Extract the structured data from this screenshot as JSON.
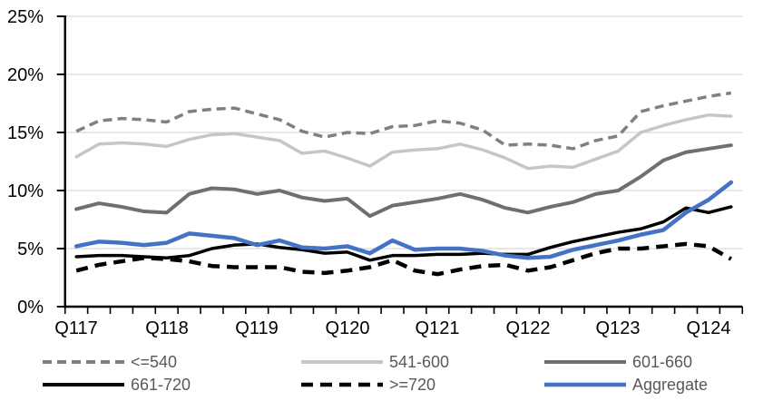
{
  "chart_data": {
    "type": "line",
    "title": "",
    "xlabel": "",
    "ylabel": "",
    "ylim": [
      0,
      25
    ],
    "grid": true,
    "gridline_color": "#d9d9d9",
    "axis_color": "#000000",
    "legend_position": "bottom",
    "ytick_labels": [
      "25%",
      "20%",
      "15%",
      "10%",
      "5%",
      "0%"
    ],
    "xtick_labels": [
      "Q117",
      "Q118",
      "Q119",
      "Q120",
      "Q121",
      "Q122",
      "Q123",
      "Q124"
    ],
    "x_label_every": 4,
    "n_points": 30,
    "x_range_note": "quarterly points from Q1 2017 through Q2 2024",
    "series": [
      {
        "id": "le540",
        "name": "<=540",
        "color": "#808080",
        "dash": "10 6",
        "width": 3.5,
        "values": [
          15.1,
          16.0,
          16.2,
          16.1,
          15.9,
          16.8,
          17.0,
          17.1,
          16.6,
          16.1,
          15.1,
          14.6,
          15.0,
          14.9,
          15.5,
          15.6,
          16.0,
          15.8,
          15.2,
          13.9,
          14.0,
          13.9,
          13.6,
          14.3,
          14.7,
          16.8,
          17.3,
          17.7,
          18.1,
          18.4
        ]
      },
      {
        "id": "s541_600",
        "name": "541-600",
        "color": "#c6c6c6",
        "dash": "",
        "width": 3.5,
        "values": [
          12.9,
          14.0,
          14.1,
          14.0,
          13.8,
          14.4,
          14.8,
          14.9,
          14.6,
          14.3,
          13.2,
          13.4,
          12.8,
          12.1,
          13.3,
          13.5,
          13.6,
          14.0,
          13.5,
          12.8,
          11.9,
          12.1,
          12.0,
          12.7,
          13.4,
          15.0,
          15.6,
          16.1,
          16.5,
          16.4
        ]
      },
      {
        "id": "s601_660",
        "name": "601-660",
        "color": "#6f6f6f",
        "dash": "",
        "width": 4,
        "values": [
          8.4,
          8.9,
          8.6,
          8.2,
          8.1,
          9.7,
          10.2,
          10.1,
          9.7,
          10.0,
          9.4,
          9.1,
          9.3,
          7.8,
          8.7,
          9.0,
          9.3,
          9.7,
          9.2,
          8.5,
          8.1,
          8.6,
          9.0,
          9.7,
          10.0,
          11.2,
          12.6,
          13.3,
          13.6,
          13.9
        ]
      },
      {
        "id": "s661_720",
        "name": "661-720",
        "color": "#000000",
        "dash": "",
        "width": 3.5,
        "values": [
          4.3,
          4.4,
          4.4,
          4.3,
          4.2,
          4.4,
          5.0,
          5.3,
          5.4,
          5.1,
          4.9,
          4.6,
          4.7,
          4.0,
          4.4,
          4.4,
          4.5,
          4.5,
          4.6,
          4.5,
          4.5,
          5.1,
          5.6,
          6.0,
          6.4,
          6.7,
          7.3,
          8.5,
          8.1,
          8.6
        ]
      },
      {
        "id": "ge720",
        "name": ">=720",
        "color": "#000000",
        "dash": "13 8",
        "width": 4.5,
        "values": [
          3.1,
          3.6,
          3.9,
          4.2,
          4.1,
          3.9,
          3.5,
          3.4,
          3.4,
          3.4,
          3.0,
          2.9,
          3.1,
          3.4,
          4.0,
          3.1,
          2.8,
          3.2,
          3.5,
          3.6,
          3.1,
          3.4,
          4.0,
          4.6,
          5.0,
          5.0,
          5.2,
          5.4,
          5.2,
          4.1
        ]
      },
      {
        "id": "aggregate",
        "name": "Aggregate",
        "color": "#4472c4",
        "dash": "",
        "width": 4.5,
        "values": [
          5.2,
          5.6,
          5.5,
          5.3,
          5.5,
          6.3,
          6.1,
          5.9,
          5.3,
          5.7,
          5.1,
          5.0,
          5.2,
          4.6,
          5.7,
          4.9,
          5.0,
          5.0,
          4.8,
          4.4,
          4.2,
          4.3,
          4.9,
          5.3,
          5.7,
          6.2,
          6.6,
          8.1,
          9.2,
          10.7
        ]
      }
    ],
    "legend_rows": [
      [
        {
          "label": "<=540",
          "series": "le540"
        },
        {
          "label": "541-600",
          "series": "s541_600"
        },
        {
          "label": "601-660",
          "series": "s601_660"
        }
      ],
      [
        {
          "label": "661-720",
          "series": "s661_720"
        },
        {
          "label": ">=720",
          "series": "ge720"
        },
        {
          "label": "Aggregate",
          "series": "aggregate"
        }
      ]
    ]
  }
}
